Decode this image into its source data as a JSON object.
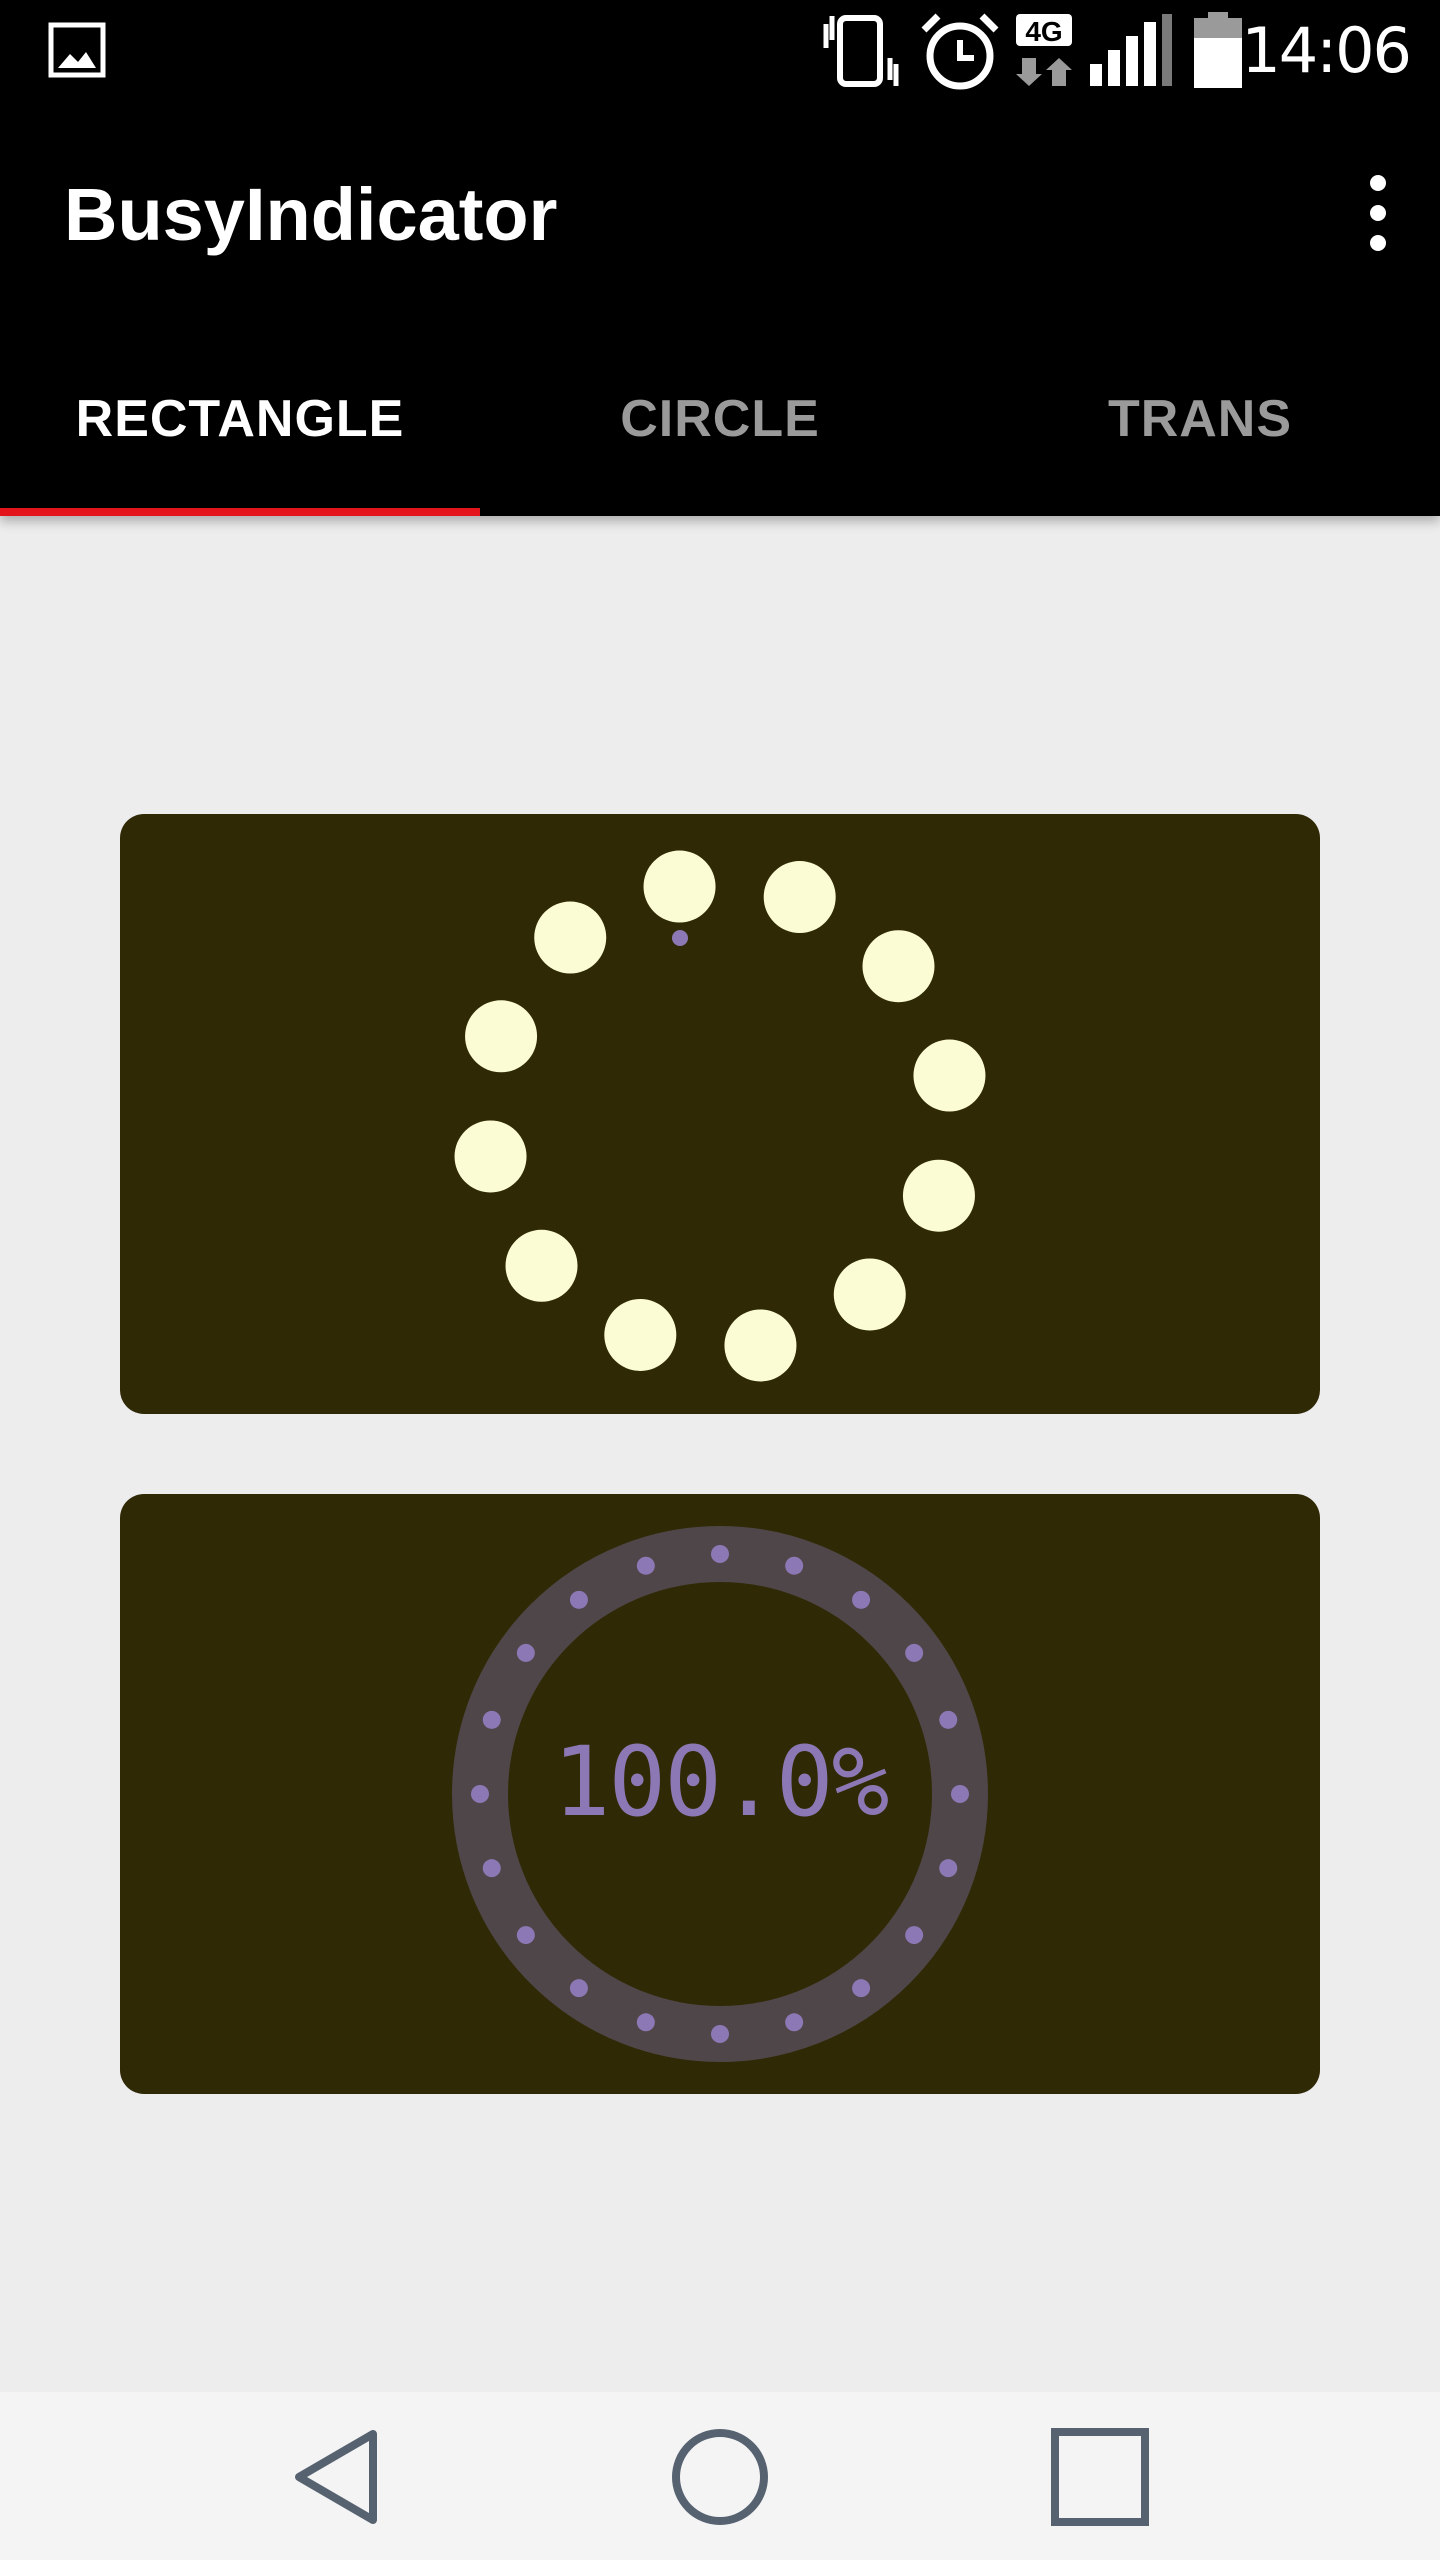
{
  "status_bar": {
    "time": "14:06",
    "network": "4G",
    "icons": [
      "image-icon",
      "vibrate-icon",
      "alarm-icon",
      "data-arrows-icon",
      "signal-icon",
      "battery-icon"
    ]
  },
  "app_bar": {
    "title": "BusyIndicator",
    "menu_icon": "more-vert-icon"
  },
  "tabs": [
    {
      "label": "RECTANGLE",
      "active": true
    },
    {
      "label": "CIRCLE",
      "active": false
    },
    {
      "label": "TRANS",
      "active": false
    }
  ],
  "indicator1": {
    "type": "dots-ring",
    "dot_count": 12
  },
  "indicator2": {
    "type": "progress-ring",
    "progress_label": "100.0%",
    "progress": 1.0,
    "dot_count": 20
  },
  "nav_bar": {
    "back_icon": "back-icon",
    "home_icon": "home-icon",
    "recents_icon": "recents-icon"
  },
  "colors": {
    "app_bar": "#000000",
    "background": "#ededed",
    "accent": "#e3151a",
    "card": "#302905",
    "dot": "#fbfcd4",
    "ring": "#4f4649",
    "ring_dot": "#8c78b4"
  }
}
